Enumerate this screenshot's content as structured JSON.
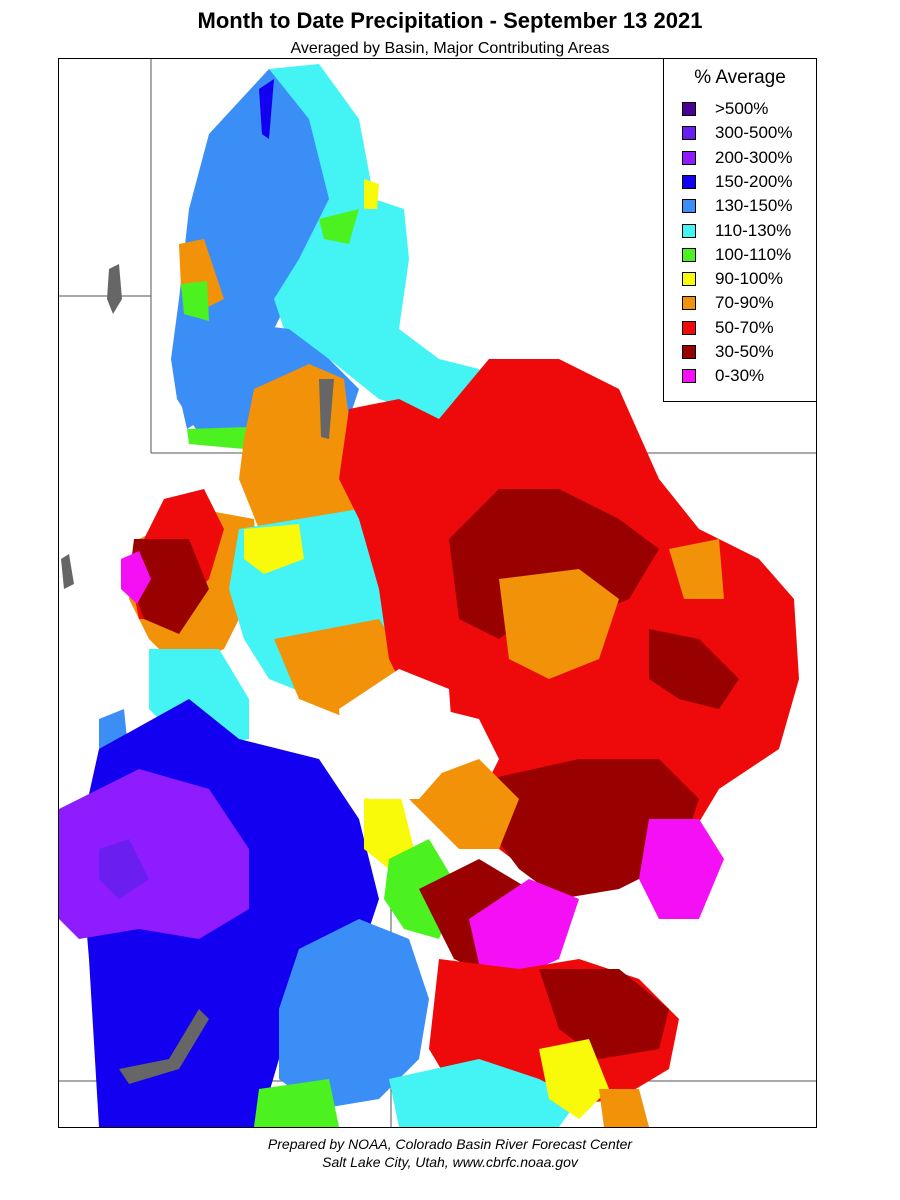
{
  "title": "Month to Date Precipitation - September 13 2021",
  "subtitle": "Averaged by Basin, Major Contributing Areas",
  "legend": {
    "title": "% Average",
    "items": [
      {
        "label": ">500%",
        "color": "#4b0096"
      },
      {
        "label": "300-500%",
        "color": "#6a1ff0"
      },
      {
        "label": "200-300%",
        "color": "#8f1bff"
      },
      {
        "label": "150-200%",
        "color": "#1400f0"
      },
      {
        "label": "130-150%",
        "color": "#3c8ef7"
      },
      {
        "label": "110-130%",
        "color": "#44f4f4"
      },
      {
        "label": "100-110%",
        "color": "#4cf21f"
      },
      {
        "label": "90-100%",
        "color": "#f9f90a"
      },
      {
        "label": "70-90%",
        "color": "#f19209"
      },
      {
        "label": "50-70%",
        "color": "#ee0a0a"
      },
      {
        "label": "30-50%",
        "color": "#990000"
      },
      {
        "label": "0-30%",
        "color": "#f40ff4"
      }
    ]
  },
  "credits": {
    "line1": "Prepared by NOAA, Colorado Basin River Forecast Center",
    "line2": "Salt Lake City, Utah, www.cbrfc.noaa.gov"
  }
}
